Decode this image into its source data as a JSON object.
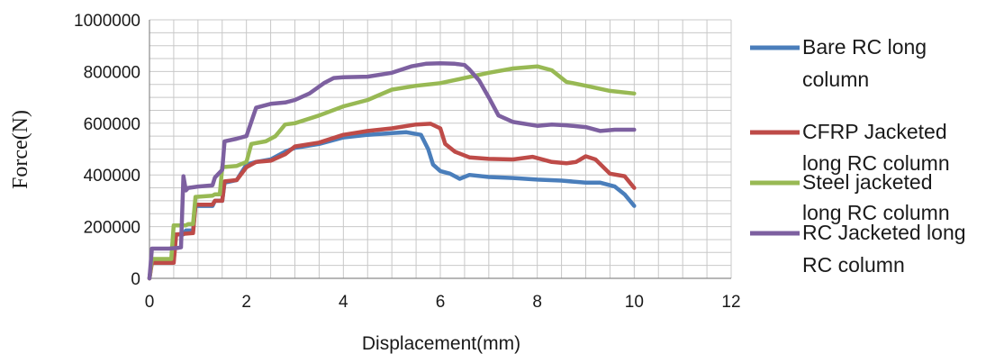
{
  "chart_data": {
    "type": "line",
    "xlabel": "Displacement(mm)",
    "ylabel": "Force(N)",
    "xlim": [
      0,
      12
    ],
    "ylim": [
      0,
      1000000
    ],
    "x_ticks": [
      "0",
      "2",
      "4",
      "6",
      "8",
      "10",
      "12"
    ],
    "y_ticks": [
      "0",
      "200000",
      "400000",
      "600000",
      "800000",
      "1000000"
    ],
    "grid": true,
    "legend_position": "right",
    "series": [
      {
        "name": "Bare RC long column",
        "legend_lines": [
          "Bare RC long",
          "column"
        ],
        "color": "#4a7ebb",
        "x": [
          0,
          0.05,
          0.5,
          0.55,
          0.7,
          0.75,
          0.9,
          0.95,
          1.3,
          1.35,
          1.5,
          1.55,
          1.8,
          2.0,
          2.2,
          2.5,
          2.8,
          3.0,
          3.5,
          4.0,
          4.5,
          5.0,
          5.3,
          5.6,
          5.75,
          5.85,
          6.0,
          6.2,
          6.4,
          6.6,
          7.0,
          7.5,
          8.0,
          8.5,
          9.0,
          9.3,
          9.6,
          9.8,
          10.0
        ],
        "y": [
          0,
          70000,
          70000,
          170000,
          170000,
          185000,
          185000,
          280000,
          280000,
          300000,
          300000,
          370000,
          380000,
          440000,
          450000,
          460000,
          490000,
          505000,
          520000,
          545000,
          555000,
          562000,
          565000,
          555000,
          500000,
          440000,
          415000,
          405000,
          385000,
          400000,
          392000,
          388000,
          382000,
          378000,
          370000,
          370000,
          355000,
          325000,
          280000
        ]
      },
      {
        "name": "CFRP Jacketed long RC column",
        "legend_lines": [
          "CFRP Jacketed",
          "long RC column"
        ],
        "color": "#be4b48",
        "x": [
          0,
          0.05,
          0.5,
          0.55,
          0.9,
          0.95,
          1.3,
          1.35,
          1.5,
          1.55,
          1.8,
          2.0,
          2.2,
          2.5,
          2.8,
          3.0,
          3.5,
          4.0,
          4.5,
          5.0,
          5.5,
          5.8,
          6.0,
          6.1,
          6.3,
          6.6,
          7.0,
          7.5,
          7.9,
          8.3,
          8.6,
          8.8,
          9.0,
          9.2,
          9.5,
          9.8,
          10.0
        ],
        "y": [
          0,
          60000,
          60000,
          170000,
          175000,
          285000,
          285000,
          300000,
          300000,
          375000,
          380000,
          430000,
          450000,
          455000,
          480000,
          510000,
          525000,
          555000,
          570000,
          580000,
          595000,
          598000,
          580000,
          520000,
          490000,
          468000,
          462000,
          460000,
          470000,
          450000,
          445000,
          450000,
          472000,
          460000,
          405000,
          395000,
          350000
        ]
      },
      {
        "name": "Steel jacketed long RC column",
        "legend_lines": [
          "Steel jacketed",
          "long RC column"
        ],
        "color": "#98b954",
        "x": [
          0,
          0.05,
          0.45,
          0.5,
          0.75,
          0.8,
          0.9,
          0.95,
          1.3,
          1.35,
          1.45,
          1.5,
          1.8,
          2.0,
          2.1,
          2.4,
          2.6,
          2.8,
          3.0,
          3.5,
          4.0,
          4.5,
          5.0,
          5.5,
          6.0,
          6.5,
          7.0,
          7.5,
          8.0,
          8.3,
          8.6,
          9.0,
          9.5,
          10.0
        ],
        "y": [
          0,
          75000,
          75000,
          205000,
          205000,
          210000,
          210000,
          315000,
          320000,
          325000,
          325000,
          430000,
          435000,
          450000,
          520000,
          530000,
          550000,
          595000,
          600000,
          630000,
          665000,
          690000,
          730000,
          745000,
          755000,
          775000,
          795000,
          812000,
          820000,
          805000,
          760000,
          745000,
          725000,
          715000
        ]
      },
      {
        "name": "RC Jacketed long RC column",
        "legend_lines": [
          "RC Jacketed long",
          "RC column"
        ],
        "color": "#7d60a0",
        "x": [
          0,
          0.05,
          0.4,
          0.6,
          0.65,
          0.7,
          0.75,
          0.8,
          1.0,
          1.3,
          1.35,
          1.5,
          1.55,
          1.8,
          2.0,
          2.2,
          2.5,
          2.8,
          3.0,
          3.3,
          3.6,
          3.8,
          4.0,
          4.5,
          5.0,
          5.4,
          5.7,
          6.0,
          6.3,
          6.5,
          6.6,
          6.8,
          7.0,
          7.2,
          7.5,
          8.0,
          8.3,
          8.6,
          9.0,
          9.3,
          9.6,
          10.0
        ],
        "y": [
          0,
          115000,
          115000,
          118000,
          120000,
          395000,
          340000,
          350000,
          355000,
          360000,
          390000,
          420000,
          530000,
          540000,
          550000,
          660000,
          675000,
          680000,
          690000,
          715000,
          755000,
          775000,
          778000,
          780000,
          795000,
          820000,
          830000,
          832000,
          830000,
          825000,
          808000,
          765000,
          700000,
          630000,
          605000,
          590000,
          595000,
          592000,
          585000,
          570000,
          575000,
          575000
        ]
      }
    ]
  }
}
